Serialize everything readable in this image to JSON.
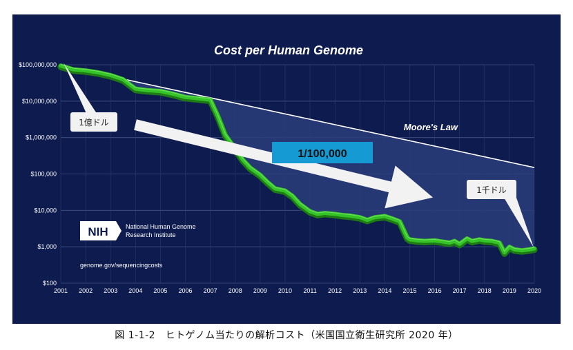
{
  "caption": "図 1-1-2　ヒトゲノム当たりの解析コスト（米国国立衛生研究所 2020 年）",
  "colors": {
    "background": "#0d1b4e",
    "moores_line": "#ffffff",
    "moores_fill": "#2a3d7a",
    "genome_line": "#35c427",
    "callout_box": "#f2f2f2",
    "arrow": "#f2f2f2",
    "ratio_box": "#169ad4"
  },
  "chart_data": {
    "type": "line",
    "title": "Cost per Human Genome",
    "y_scale": "log",
    "ylim": [
      100,
      100000000
    ],
    "xlim": [
      2001,
      2020
    ],
    "grid": "horizontal",
    "y_ticks": [
      {
        "value": 100000000,
        "label": "$100,000,000"
      },
      {
        "value": 10000000,
        "label": "$10,000,000"
      },
      {
        "value": 1000000,
        "label": "$1,000,000"
      },
      {
        "value": 100000,
        "label": "$100,000"
      },
      {
        "value": 10000,
        "label": "$10,000"
      },
      {
        "value": 1000,
        "label": "$1,000"
      },
      {
        "value": 100,
        "label": "$100"
      }
    ],
    "x_ticks": [
      "2001",
      "2002",
      "2003",
      "2004",
      "2005",
      "2006",
      "2007",
      "2008",
      "2009",
      "2010",
      "2011",
      "2012",
      "2013",
      "2014",
      "2015",
      "2016",
      "2017",
      "2018",
      "2019",
      "2020"
    ],
    "series": [
      {
        "name": "Moore's Law",
        "x": [
          2001.0,
          2020.0
        ],
        "y": [
          95000000,
          150000
        ]
      },
      {
        "name": "",
        "x": [
          2001.0,
          2001.5,
          2002.0,
          2002.5,
          2003.0,
          2003.5,
          2004.0,
          2004.5,
          2005.0,
          2005.5,
          2006.0,
          2006.5,
          2007.0,
          2007.3,
          2007.6,
          2008.0,
          2008.3,
          2008.6,
          2009.0,
          2009.3,
          2009.6,
          2010.0,
          2010.3,
          2010.6,
          2011.0,
          2011.3,
          2011.6,
          2012.0,
          2012.3,
          2012.6,
          2013.0,
          2013.3,
          2013.6,
          2014.0,
          2014.3,
          2014.6,
          2014.9,
          2015.0,
          2015.3,
          2015.6,
          2016.0,
          2016.3,
          2016.6,
          2016.8,
          2017.0,
          2017.3,
          2017.5,
          2017.8,
          2018.0,
          2018.3,
          2018.6,
          2018.8,
          2019.0,
          2019.2,
          2019.5,
          2019.8,
          2020.0
        ],
        "y": [
          95000000,
          75000000,
          70000000,
          62000000,
          52000000,
          40000000,
          22000000,
          20000000,
          19000000,
          16000000,
          13000000,
          12000000,
          11000000,
          4000000,
          1200000,
          500000,
          250000,
          150000,
          95000,
          60000,
          40000,
          35000,
          25000,
          15000,
          9500,
          8000,
          8500,
          8000,
          7500,
          7200,
          6500,
          5500,
          6500,
          7000,
          6000,
          5000,
          1800,
          1600,
          1500,
          1450,
          1500,
          1400,
          1300,
          1450,
          1200,
          1700,
          1450,
          1600,
          1500,
          1450,
          1300,
          700,
          1000,
          850,
          800,
          850,
          900
        ]
      }
    ],
    "annotations": [
      {
        "text": "1億ドル"
      },
      {
        "text": "1/100,000"
      },
      {
        "text": "1千ドル"
      }
    ],
    "logo": {
      "abbr": "NIH",
      "name_line1": "National Human Genome",
      "name_line2": "Research Institute"
    },
    "source": "genome.gov/sequencingcosts"
  }
}
